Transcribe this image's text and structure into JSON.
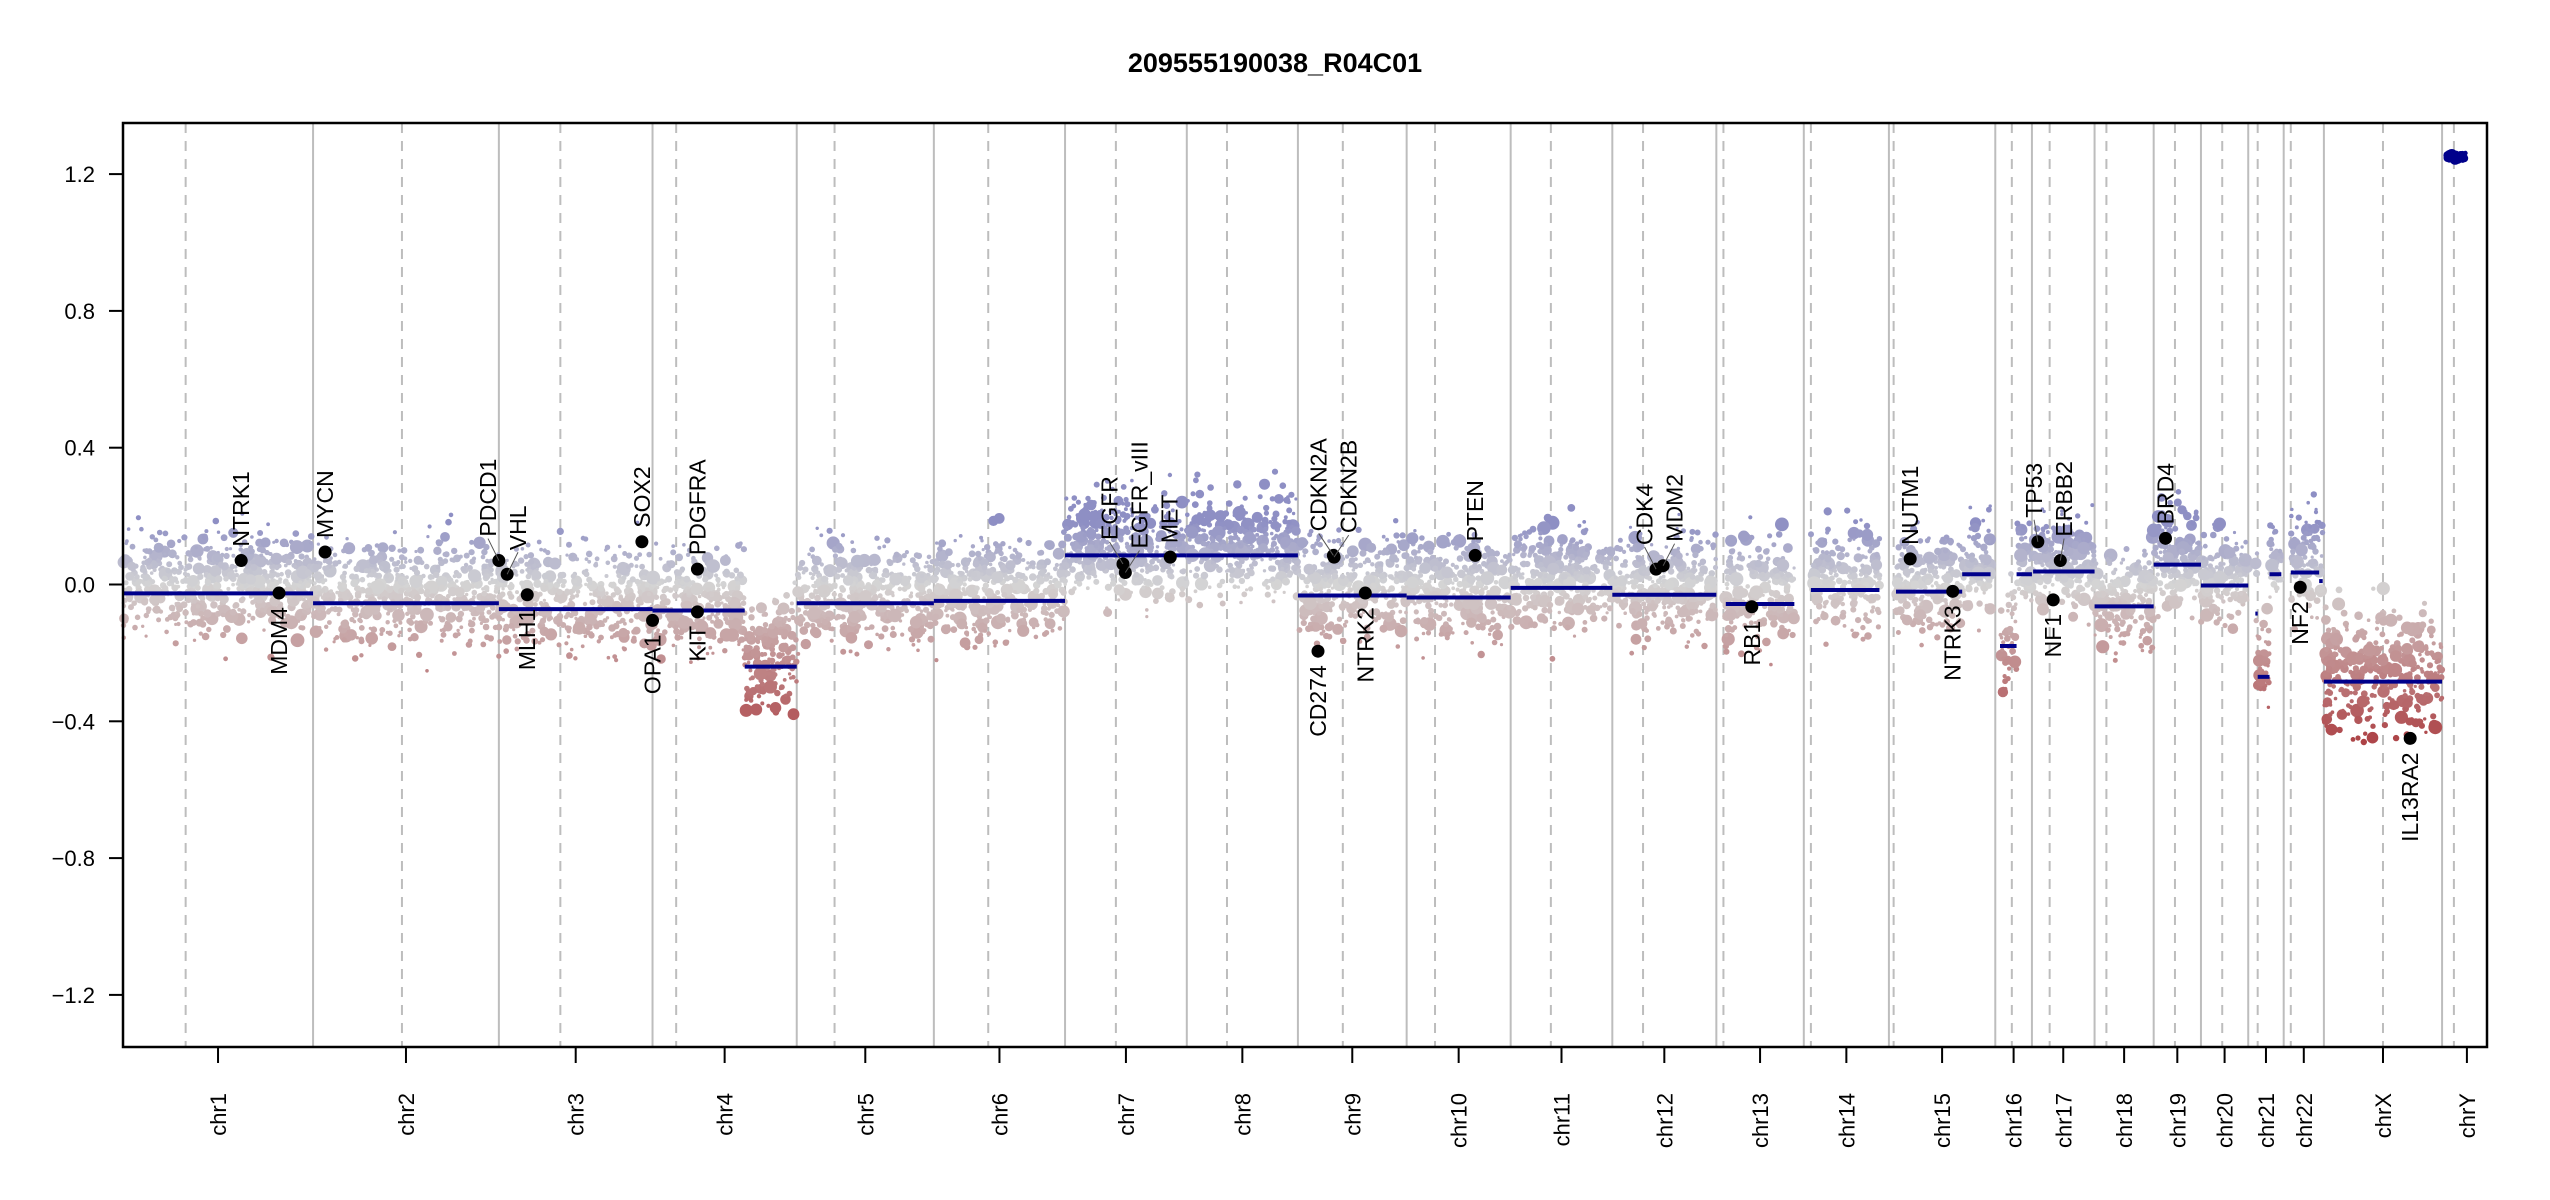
{
  "chart_data": {
    "type": "scatter",
    "title": "209555190038_R04C01",
    "xlabel": "",
    "ylabel": "",
    "x_units": "genome bin index (0-1000, cumulative across chromosomes)",
    "xlim": [
      0,
      1000
    ],
    "ylim": [
      -1.35,
      1.35
    ],
    "yticks": [
      {
        "value": 1.2,
        "label": "1.2"
      },
      {
        "value": 0.8,
        "label": "0.8"
      },
      {
        "value": 0.4,
        "label": "0.4"
      },
      {
        "value": 0.0,
        "label": "0.0"
      },
      {
        "value": -0.4,
        "label": "−0.4"
      },
      {
        "value": -0.8,
        "label": "−0.8"
      },
      {
        "value": -1.2,
        "label": "−1.2"
      }
    ],
    "grid": false,
    "legend": "none",
    "colors": {
      "gain": "#8e8fc4",
      "neutral": "#d4d4d4",
      "loss": "#a5262a",
      "segment": "#00008b",
      "gene_dot": "#000000",
      "chrom_boundary": "#bdbdbd",
      "centromere": "#bdbdbd",
      "axis": "#000000"
    },
    "chromosomes": [
      {
        "name": "chr1",
        "start": 0,
        "end": 80.4,
        "centromere": 26.5
      },
      {
        "name": "chr2",
        "start": 80.4,
        "end": 159,
        "centromere": 118
      },
      {
        "name": "chr3",
        "start": 159,
        "end": 224,
        "centromere": 185
      },
      {
        "name": "chr4",
        "start": 224,
        "end": 285,
        "centromere": 234
      },
      {
        "name": "chr5",
        "start": 285,
        "end": 343,
        "centromere": 301
      },
      {
        "name": "chr6",
        "start": 343,
        "end": 398.5,
        "centromere": 366
      },
      {
        "name": "chr7",
        "start": 398.5,
        "end": 450,
        "centromere": 420
      },
      {
        "name": "chr8",
        "start": 450,
        "end": 497,
        "centromere": 467
      },
      {
        "name": "chr9",
        "start": 497,
        "end": 543,
        "centromere": 516
      },
      {
        "name": "chr10",
        "start": 543,
        "end": 587,
        "centromere": 555
      },
      {
        "name": "chr11",
        "start": 587,
        "end": 630,
        "centromere": 604
      },
      {
        "name": "chr12",
        "start": 630,
        "end": 674,
        "centromere": 643
      },
      {
        "name": "chr13",
        "start": 674,
        "end": 711,
        "centromere": 677
      },
      {
        "name": "chr14",
        "start": 711,
        "end": 747,
        "centromere": 714
      },
      {
        "name": "chr15",
        "start": 747,
        "end": 792,
        "centromere": 749
      },
      {
        "name": "chr16",
        "start": 792,
        "end": 807.5,
        "centromere": 799
      },
      {
        "name": "chr17",
        "start": 807.5,
        "end": 834,
        "centromere": 815
      },
      {
        "name": "chr18",
        "start": 834,
        "end": 859,
        "centromere": 839
      },
      {
        "name": "chr19",
        "start": 859,
        "end": 879,
        "centromere": 868
      },
      {
        "name": "chr20",
        "start": 879,
        "end": 899,
        "centromere": 888
      },
      {
        "name": "chr21",
        "start": 899,
        "end": 914,
        "centromere": 903
      },
      {
        "name": "chr22",
        "start": 914,
        "end": 931,
        "centromere": 917
      },
      {
        "name": "chrX",
        "start": 931,
        "end": 981,
        "centromere": 956
      },
      {
        "name": "chrY",
        "start": 981,
        "end": 1000,
        "centromere": 986
      }
    ],
    "segments": [
      {
        "chrom": "chr1",
        "start": 0,
        "end": 80.4,
        "value": -0.026
      },
      {
        "chrom": "chr2",
        "start": 80.4,
        "end": 159,
        "value": -0.055
      },
      {
        "chrom": "chr3",
        "start": 159,
        "end": 224,
        "value": -0.072
      },
      {
        "chrom": "chr4",
        "start": 224,
        "end": 263,
        "value": -0.076
      },
      {
        "chrom": "chr4",
        "start": 263,
        "end": 285,
        "value": -0.24
      },
      {
        "chrom": "chr5",
        "start": 285,
        "end": 343,
        "value": -0.055
      },
      {
        "chrom": "chr6",
        "start": 343,
        "end": 398.5,
        "value": -0.048
      },
      {
        "chrom": "chr7",
        "start": 398.5,
        "end": 450,
        "value": 0.085
      },
      {
        "chrom": "chr8",
        "start": 450,
        "end": 497,
        "value": 0.085
      },
      {
        "chrom": "chr9",
        "start": 497,
        "end": 543,
        "value": -0.032
      },
      {
        "chrom": "chr10",
        "start": 543,
        "end": 587,
        "value": -0.038
      },
      {
        "chrom": "chr11",
        "start": 587,
        "end": 630,
        "value": -0.01
      },
      {
        "chrom": "chr12",
        "start": 630,
        "end": 674,
        "value": -0.03
      },
      {
        "chrom": "chr13",
        "start": 678,
        "end": 707,
        "value": -0.057
      },
      {
        "chrom": "chr14",
        "start": 714,
        "end": 743,
        "value": -0.016
      },
      {
        "chrom": "chr15",
        "start": 750,
        "end": 778,
        "value": -0.021
      },
      {
        "chrom": "chr15",
        "start": 778,
        "end": 790,
        "value": 0.03
      },
      {
        "chrom": "chr16",
        "start": 794,
        "end": 801,
        "value": -0.18
      },
      {
        "chrom": "chr16",
        "start": 801,
        "end": 807.5,
        "value": 0.03
      },
      {
        "chrom": "chr17",
        "start": 808,
        "end": 834,
        "value": 0.038
      },
      {
        "chrom": "chr18",
        "start": 834,
        "end": 859,
        "value": -0.064
      },
      {
        "chrom": "chr19",
        "start": 859,
        "end": 879,
        "value": 0.058
      },
      {
        "chrom": "chr20",
        "start": 879,
        "end": 899,
        "value": -0.003
      },
      {
        "chrom": "chr21",
        "start": 902,
        "end": 903,
        "value": -0.085
      },
      {
        "chrom": "chr21",
        "start": 903,
        "end": 908,
        "value": -0.27
      },
      {
        "chrom": "chr21",
        "start": 908,
        "end": 913,
        "value": 0.03
      },
      {
        "chrom": "chr22",
        "start": 917,
        "end": 929,
        "value": 0.035
      },
      {
        "chrom": "chr22",
        "start": 929,
        "end": 930.5,
        "value": 0.01
      },
      {
        "chrom": "chrX",
        "start": 931,
        "end": 981,
        "value": -0.284
      },
      {
        "chrom": "chrY",
        "start": 983,
        "end": 991,
        "value": 1.25
      }
    ],
    "genes": [
      {
        "name": "NTRK1",
        "x": 50,
        "value": 0.07,
        "label_dir": "up"
      },
      {
        "name": "MDM4",
        "x": 66,
        "value": -0.025,
        "label_dir": "down"
      },
      {
        "name": "MYCN",
        "x": 85.5,
        "value": 0.095,
        "label_dir": "up"
      },
      {
        "name": "PDCD1",
        "x": 159,
        "value": 0.07,
        "label_dir": "up"
      },
      {
        "name": "VHL",
        "x": 162.5,
        "value": 0.03,
        "label_dir": "up"
      },
      {
        "name": "MLH1",
        "x": 171,
        "value": -0.03,
        "label_dir": "down"
      },
      {
        "name": "SOX2",
        "x": 219.5,
        "value": 0.125,
        "label_dir": "up"
      },
      {
        "name": "OPA1",
        "x": 224,
        "value": -0.105,
        "label_dir": "down"
      },
      {
        "name": "PDGFRA",
        "x": 243,
        "value": 0.045,
        "label_dir": "up"
      },
      {
        "name": "KIT",
        "x": 243,
        "value": -0.08,
        "label_dir": "down"
      },
      {
        "name": "EGFR",
        "x": 423,
        "value": 0.06,
        "label_dir": "up"
      },
      {
        "name": "EGFR_vIII",
        "x": 424,
        "value": 0.035,
        "label_dir": "up"
      },
      {
        "name": "MET",
        "x": 443,
        "value": 0.08,
        "label_dir": "up"
      },
      {
        "name": "CDKN2A",
        "x": 512,
        "value": 0.085,
        "label_dir": "up"
      },
      {
        "name": "CDKN2B",
        "x": 512.3,
        "value": 0.08,
        "label_dir": "up"
      },
      {
        "name": "CD274",
        "x": 505.5,
        "value": -0.195,
        "label_dir": "down"
      },
      {
        "name": "NTRK2",
        "x": 525.5,
        "value": -0.025,
        "label_dir": "down"
      },
      {
        "name": "PTEN",
        "x": 572,
        "value": 0.085,
        "label_dir": "up"
      },
      {
        "name": "CDK4",
        "x": 648.5,
        "value": 0.045,
        "label_dir": "up"
      },
      {
        "name": "MDM2",
        "x": 651.5,
        "value": 0.055,
        "label_dir": "up"
      },
      {
        "name": "RB1",
        "x": 689,
        "value": -0.065,
        "label_dir": "down"
      },
      {
        "name": "NUTM1",
        "x": 756,
        "value": 0.075,
        "label_dir": "up"
      },
      {
        "name": "NTRK3",
        "x": 774,
        "value": -0.02,
        "label_dir": "down"
      },
      {
        "name": "TP53",
        "x": 810,
        "value": 0.125,
        "label_dir": "up"
      },
      {
        "name": "ERBB2",
        "x": 819.5,
        "value": 0.07,
        "label_dir": "up"
      },
      {
        "name": "NF1",
        "x": 816.5,
        "value": -0.045,
        "label_dir": "down"
      },
      {
        "name": "BRD4",
        "x": 864,
        "value": 0.135,
        "label_dir": "up"
      },
      {
        "name": "NF2",
        "x": 921,
        "value": -0.008,
        "label_dir": "down"
      },
      {
        "name": "IL13RA2",
        "x": 967.5,
        "value": -0.45,
        "label_dir": "down"
      }
    ],
    "bins_note": "Per-bin scatter is dense (thousands of points) spread roughly -0.35 to +0.25 around each segment; rendered procedurally around the segment means."
  }
}
